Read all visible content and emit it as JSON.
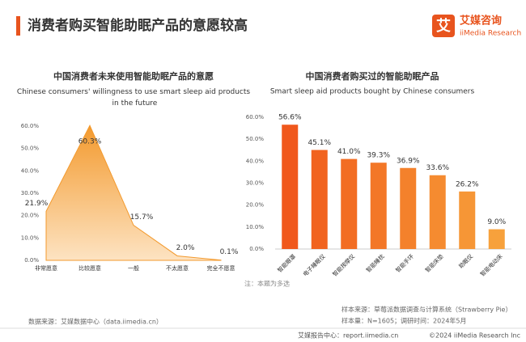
{
  "header": {
    "title": "消费者购买智能助眠产品的意愿较高",
    "logo_icon": "艾",
    "logo_name": "艾媒咨询",
    "logo_sub": "iiMedia Research"
  },
  "chart_data": [
    {
      "type": "area",
      "title": "中国消费者未来使用智能助眠产品的意愿",
      "subtitle": "Chinese consumers' willingness to use smart sleep aid products in the future",
      "categories": [
        "非常愿意",
        "比较愿意",
        "一般",
        "不太愿意",
        "完全不愿意"
      ],
      "values": [
        21.9,
        60.3,
        15.7,
        2.0,
        0.1
      ],
      "value_labels": [
        "21.9%",
        "60.3%",
        "15.7%",
        "2.0%",
        "0.1%"
      ],
      "color": "#f39a2e",
      "ylim": [
        0,
        60
      ],
      "yticks": [
        {
          "value": 0,
          "label": "0.0%"
        },
        {
          "value": 10,
          "label": "10.0%"
        },
        {
          "value": 20,
          "label": "20.0%"
        },
        {
          "value": 30,
          "label": "30.0%"
        },
        {
          "value": 40,
          "label": "40.0%"
        },
        {
          "value": 50,
          "label": "50.0%"
        },
        {
          "value": 60,
          "label": "60.0%"
        }
      ]
    },
    {
      "type": "bar",
      "title": "中国消费者购买过的智能助眠产品",
      "subtitle": "Smart sleep aid products bought by Chinese consumers",
      "categories": [
        "智能眼罩",
        "电子睡眠仪",
        "智能按摩仪",
        "智能睡枕",
        "智能手环",
        "智能床垫",
        "助眠仪",
        "智能电动床"
      ],
      "values": [
        56.6,
        45.1,
        41.0,
        39.3,
        36.9,
        33.6,
        26.2,
        9.0
      ],
      "value_labels": [
        "56.6%",
        "45.1%",
        "41.0%",
        "39.3%",
        "36.9%",
        "33.6%",
        "26.2%",
        "9.0%"
      ],
      "colors": [
        "#f0581c",
        "#f1631f",
        "#f26d23",
        "#f37727",
        "#f4812b",
        "#f58b30",
        "#f69636",
        "#f7a13c"
      ],
      "ylim": [
        0,
        60
      ],
      "yticks": [
        {
          "value": 0,
          "label": "0.0%"
        },
        {
          "value": 10,
          "label": "10.0%"
        },
        {
          "value": 20,
          "label": "20.0%"
        },
        {
          "value": 30,
          "label": "30.0%"
        },
        {
          "value": 40,
          "label": "40.0%"
        },
        {
          "value": 50,
          "label": "50.0%"
        },
        {
          "value": 60,
          "label": "60.0%"
        }
      ],
      "note": "注：本题为多选"
    }
  ],
  "footer": {
    "source": "数据来源：艾媒数据中心（data.iimedia.cn）",
    "sample_source": "样本来源：草莓派数据调查与计算系统（Strawberry Pie）",
    "sample_size": "样本量：N=1605；调研时间：2024年5月",
    "report_center": "艾媒报告中心：report.iimedia.cn",
    "copyright": "©2024  iiMedia Research Inc"
  }
}
